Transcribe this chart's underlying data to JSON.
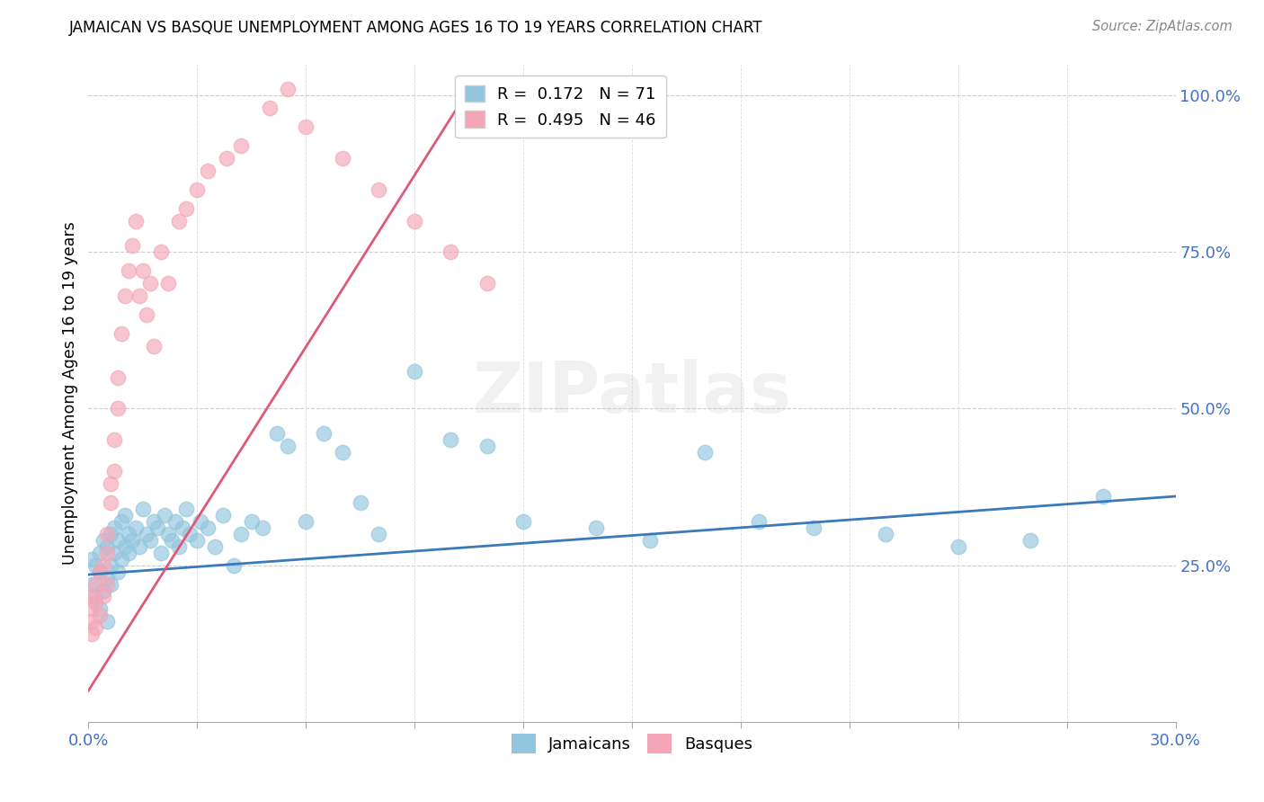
{
  "title": "JAMAICAN VS BASQUE UNEMPLOYMENT AMONG AGES 16 TO 19 YEARS CORRELATION CHART",
  "source": "Source: ZipAtlas.com",
  "ylabel": "Unemployment Among Ages 16 to 19 years",
  "yticks_right": [
    "25.0%",
    "50.0%",
    "75.0%",
    "100.0%"
  ],
  "yticks_right_vals": [
    0.25,
    0.5,
    0.75,
    1.0
  ],
  "watermark": "ZIPatlas",
  "blue_color": "#92c5de",
  "pink_color": "#f4a6b8",
  "blue_line_color": "#3a7aba",
  "pink_line_color": "#e05878",
  "blue_line_x": [
    0.0,
    0.3
  ],
  "blue_line_y": [
    0.235,
    0.36
  ],
  "pink_line_x": [
    0.0,
    0.105
  ],
  "pink_line_y": [
    0.05,
    1.01
  ],
  "xmin": 0.0,
  "xmax": 0.3,
  "ymin": 0.0,
  "ymax": 1.05,
  "jamaican_x": [
    0.001,
    0.001,
    0.002,
    0.002,
    0.003,
    0.003,
    0.003,
    0.004,
    0.004,
    0.005,
    0.005,
    0.005,
    0.006,
    0.006,
    0.006,
    0.007,
    0.007,
    0.008,
    0.008,
    0.009,
    0.009,
    0.01,
    0.01,
    0.011,
    0.011,
    0.012,
    0.013,
    0.014,
    0.015,
    0.016,
    0.017,
    0.018,
    0.019,
    0.02,
    0.021,
    0.022,
    0.023,
    0.024,
    0.025,
    0.026,
    0.027,
    0.028,
    0.03,
    0.031,
    0.033,
    0.035,
    0.037,
    0.04,
    0.042,
    0.045,
    0.048,
    0.052,
    0.055,
    0.06,
    0.065,
    0.07,
    0.075,
    0.08,
    0.09,
    0.1,
    0.11,
    0.12,
    0.14,
    0.155,
    0.17,
    0.185,
    0.2,
    0.22,
    0.24,
    0.26,
    0.28
  ],
  "jamaican_y": [
    0.22,
    0.26,
    0.2,
    0.25,
    0.18,
    0.27,
    0.24,
    0.21,
    0.29,
    0.16,
    0.28,
    0.23,
    0.3,
    0.25,
    0.22,
    0.31,
    0.27,
    0.24,
    0.29,
    0.26,
    0.32,
    0.28,
    0.33,
    0.27,
    0.3,
    0.29,
    0.31,
    0.28,
    0.34,
    0.3,
    0.29,
    0.32,
    0.31,
    0.27,
    0.33,
    0.3,
    0.29,
    0.32,
    0.28,
    0.31,
    0.34,
    0.3,
    0.29,
    0.32,
    0.31,
    0.28,
    0.33,
    0.25,
    0.3,
    0.32,
    0.31,
    0.46,
    0.44,
    0.32,
    0.46,
    0.43,
    0.35,
    0.3,
    0.56,
    0.45,
    0.44,
    0.32,
    0.31,
    0.29,
    0.43,
    0.32,
    0.31,
    0.3,
    0.28,
    0.29,
    0.36
  ],
  "basque_x": [
    0.001,
    0.001,
    0.001,
    0.001,
    0.002,
    0.002,
    0.002,
    0.003,
    0.003,
    0.004,
    0.004,
    0.005,
    0.005,
    0.005,
    0.006,
    0.006,
    0.007,
    0.007,
    0.008,
    0.008,
    0.009,
    0.01,
    0.011,
    0.012,
    0.013,
    0.014,
    0.015,
    0.016,
    0.017,
    0.018,
    0.02,
    0.022,
    0.025,
    0.027,
    0.03,
    0.033,
    0.038,
    0.042,
    0.05,
    0.055,
    0.06,
    0.07,
    0.08,
    0.09,
    0.1,
    0.11
  ],
  "basque_y": [
    0.14,
    0.16,
    0.18,
    0.2,
    0.15,
    0.19,
    0.22,
    0.17,
    0.24,
    0.2,
    0.25,
    0.22,
    0.27,
    0.3,
    0.35,
    0.38,
    0.4,
    0.45,
    0.5,
    0.55,
    0.62,
    0.68,
    0.72,
    0.76,
    0.8,
    0.68,
    0.72,
    0.65,
    0.7,
    0.6,
    0.75,
    0.7,
    0.8,
    0.82,
    0.85,
    0.88,
    0.9,
    0.92,
    0.98,
    1.01,
    0.95,
    0.9,
    0.85,
    0.8,
    0.75,
    0.7
  ]
}
